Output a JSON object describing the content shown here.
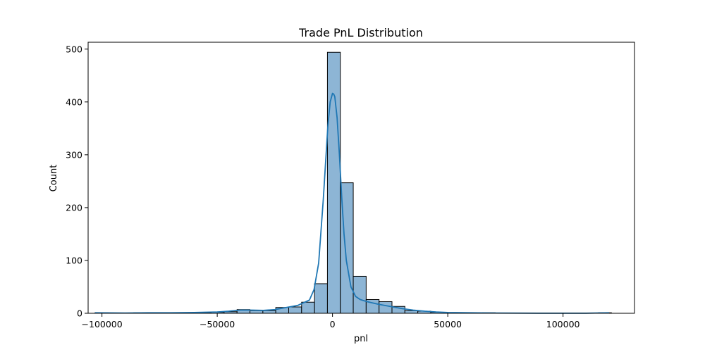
{
  "chart_data": {
    "type": "bar",
    "title": "Trade PnL Distribution",
    "xlabel": "pnl",
    "ylabel": "Count",
    "xlim": [
      -106000,
      131000
    ],
    "ylim": [
      0,
      513
    ],
    "xticks": [
      -100000,
      -50000,
      0,
      50000,
      100000
    ],
    "xtick_labels": [
      "−100000",
      "−50000",
      "0",
      "50000",
      "100000"
    ],
    "yticks": [
      0,
      100,
      200,
      300,
      400,
      500
    ],
    "ytick_labels": [
      "0",
      "100",
      "200",
      "300",
      "400",
      "500"
    ],
    "grid": false,
    "series": [
      {
        "bins": [
          {
            "x0": -103000,
            "x1": -97400,
            "count": 1
          },
          {
            "x0": -97400,
            "x1": -91800,
            "count": 0
          },
          {
            "x0": -91800,
            "x1": -86200,
            "count": 0
          },
          {
            "x0": -86200,
            "x1": -80600,
            "count": 1
          },
          {
            "x0": -80600,
            "x1": -75000,
            "count": 0
          },
          {
            "x0": -75000,
            "x1": -69400,
            "count": 1
          },
          {
            "x0": -69400,
            "x1": -63800,
            "count": 0
          },
          {
            "x0": -63800,
            "x1": -58200,
            "count": 1
          },
          {
            "x0": -58200,
            "x1": -52600,
            "count": 1
          },
          {
            "x0": -52600,
            "x1": -47000,
            "count": 2
          },
          {
            "x0": -47000,
            "x1": -41400,
            "count": 3
          },
          {
            "x0": -41400,
            "x1": -35800,
            "count": 7
          },
          {
            "x0": -35800,
            "x1": -30200,
            "count": 5
          },
          {
            "x0": -30200,
            "x1": -24600,
            "count": 5
          },
          {
            "x0": -24600,
            "x1": -19000,
            "count": 11
          },
          {
            "x0": -19000,
            "x1": -13400,
            "count": 12
          },
          {
            "x0": -13400,
            "x1": -7800,
            "count": 21
          },
          {
            "x0": -7800,
            "x1": -2200,
            "count": 56
          },
          {
            "x0": -2200,
            "x1": 3400,
            "count": 494
          },
          {
            "x0": 3400,
            "x1": 9000,
            "count": 247
          },
          {
            "x0": 9000,
            "x1": 14600,
            "count": 70
          },
          {
            "x0": 14600,
            "x1": 20200,
            "count": 26
          },
          {
            "x0": 20200,
            "x1": 25800,
            "count": 22
          },
          {
            "x0": 25800,
            "x1": 31400,
            "count": 13
          },
          {
            "x0": 31400,
            "x1": 37000,
            "count": 5
          },
          {
            "x0": 37000,
            "x1": 42600,
            "count": 4
          },
          {
            "x0": 42600,
            "x1": 48200,
            "count": 2
          },
          {
            "x0": 48200,
            "x1": 53800,
            "count": 1
          },
          {
            "x0": 53800,
            "x1": 59400,
            "count": 0
          },
          {
            "x0": 59400,
            "x1": 65000,
            "count": 0
          },
          {
            "x0": 65000,
            "x1": 70600,
            "count": 1
          },
          {
            "x0": 70600,
            "x1": 76200,
            "count": 0
          },
          {
            "x0": 76200,
            "x1": 81800,
            "count": 0
          },
          {
            "x0": 81800,
            "x1": 87400,
            "count": 0
          },
          {
            "x0": 87400,
            "x1": 93000,
            "count": 0
          },
          {
            "x0": 93000,
            "x1": 98600,
            "count": 0
          },
          {
            "x0": 98600,
            "x1": 104200,
            "count": 0
          },
          {
            "x0": 104200,
            "x1": 109800,
            "count": 0
          },
          {
            "x0": 109800,
            "x1": 115400,
            "count": 0
          },
          {
            "x0": 115400,
            "x1": 121000,
            "count": 1
          }
        ],
        "kde": {
          "x": [
            -103000,
            -90000,
            -80000,
            -70000,
            -60000,
            -50000,
            -45000,
            -40000,
            -35000,
            -30000,
            -25000,
            -20000,
            -15000,
            -10000,
            -8000,
            -6000,
            -4000,
            -2000,
            -1000,
            0,
            500,
            1000,
            2000,
            3000,
            4000,
            5000,
            6000,
            8000,
            10000,
            12000,
            15000,
            20000,
            25000,
            30000,
            35000,
            40000,
            45000,
            50000,
            60000,
            70000,
            80000,
            90000,
            100000,
            110000,
            120000
          ],
          "y": [
            1,
            0.5,
            1,
            1,
            1.5,
            2.5,
            4,
            6,
            6,
            5.5,
            7,
            11,
            15,
            25,
            45,
            95,
            215,
            355,
            400,
            416,
            415,
            410,
            370,
            300,
            220,
            150,
            100,
            50,
            32,
            26,
            22,
            17,
            13,
            9,
            6,
            4,
            2.5,
            1.5,
            1,
            0.5,
            0.3,
            0.2,
            0.2,
            0.2,
            1
          ]
        }
      }
    ]
  }
}
